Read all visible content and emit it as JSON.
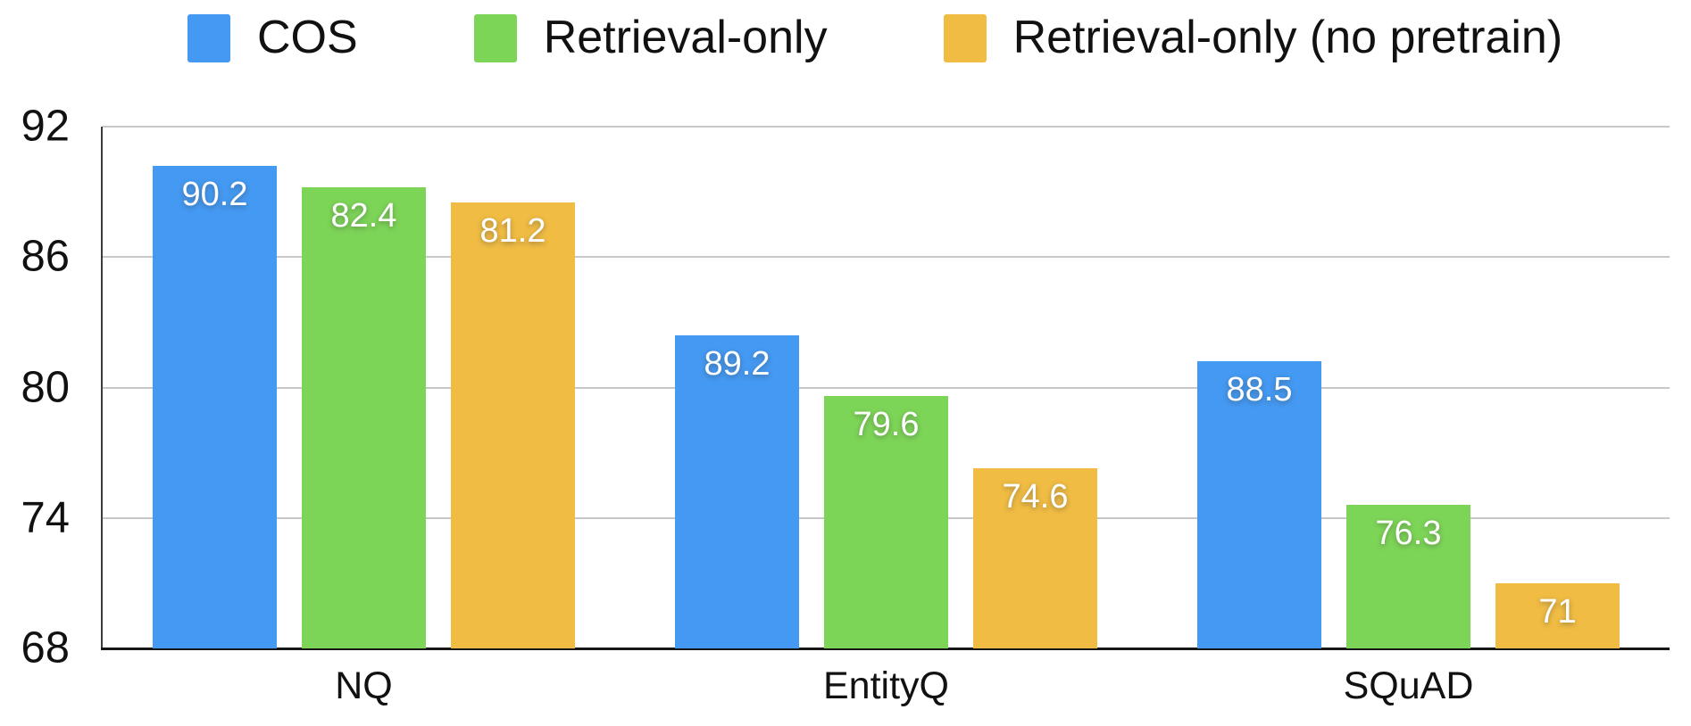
{
  "chart_data": {
    "type": "bar",
    "title": "",
    "categories": [
      "NQ",
      "EntityQ",
      "SQuAD"
    ],
    "series": [
      {
        "name": "COS",
        "color": "#4499F2",
        "values": [
          90.2,
          82.4,
          81.2
        ]
      },
      {
        "name": "Retrieval-only",
        "color": "#7DD557",
        "values": [
          89.2,
          79.6,
          74.6
        ]
      },
      {
        "name": "Retrieval-only (no pretrain)",
        "color": "#F0BC43",
        "values": [
          88.5,
          76.3,
          71
        ]
      }
    ],
    "value_labels": [
      [
        "90.2",
        "89.2",
        "88.5"
      ],
      [
        "82.4",
        "79.6",
        "76.3"
      ],
      [
        "81.2",
        "74.6",
        "71"
      ]
    ],
    "xlabel": "",
    "ylabel": "",
    "ylim": [
      68,
      92
    ],
    "yticks": [
      92,
      86,
      80,
      74,
      68
    ],
    "grid": "horizontal",
    "legend_position": "top",
    "value_label_color": "#ffffff",
    "gridline_color": "#c7c7c7",
    "axis_color": "#161616",
    "text_color": "#111111"
  }
}
